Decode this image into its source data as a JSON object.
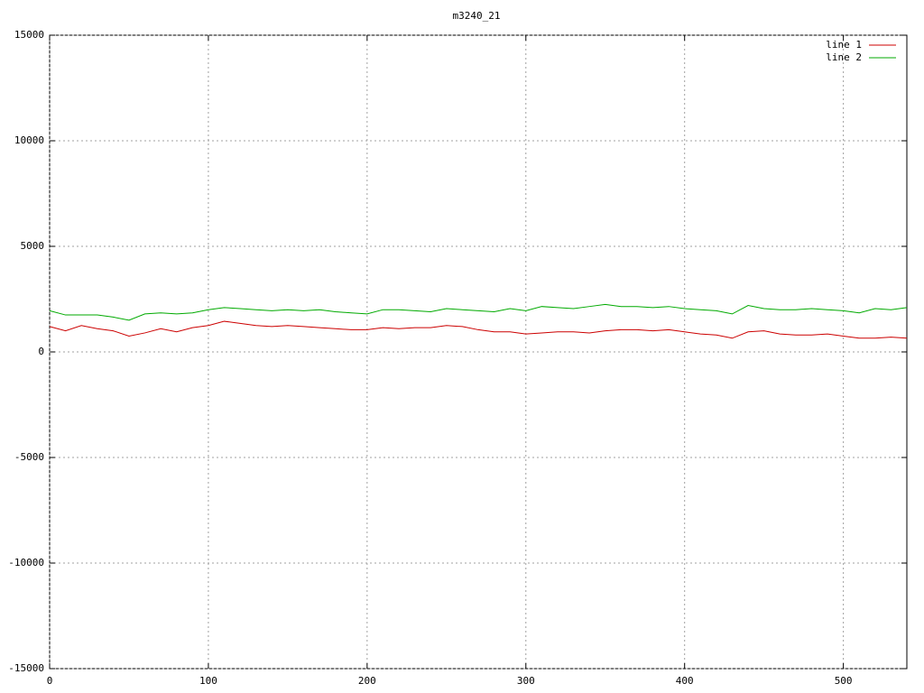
{
  "chart_data": {
    "type": "line",
    "title": "m3240_21",
    "x": [
      0,
      10,
      20,
      30,
      40,
      50,
      60,
      70,
      80,
      90,
      100,
      110,
      120,
      130,
      140,
      150,
      160,
      170,
      180,
      190,
      200,
      210,
      220,
      230,
      240,
      250,
      260,
      270,
      280,
      290,
      300,
      310,
      320,
      330,
      340,
      350,
      360,
      370,
      380,
      390,
      400,
      410,
      420,
      430,
      440,
      450,
      460,
      470,
      480,
      490,
      500,
      510,
      520,
      530,
      540
    ],
    "series": [
      {
        "name": "line 1",
        "color": "#cc0000",
        "values": [
          1200,
          1000,
          1250,
          1100,
          1000,
          750,
          900,
          1100,
          950,
          1150,
          1250,
          1450,
          1350,
          1250,
          1200,
          1250,
          1200,
          1150,
          1100,
          1050,
          1050,
          1150,
          1100,
          1150,
          1150,
          1250,
          1200,
          1050,
          950,
          950,
          850,
          900,
          950,
          950,
          900,
          1000,
          1050,
          1050,
          1000,
          1050,
          950,
          850,
          800,
          650,
          950,
          1000,
          850,
          800,
          800,
          850,
          750,
          650,
          650,
          700,
          650
        ]
      },
      {
        "name": "line 2",
        "color": "#00aa00",
        "values": [
          1950,
          1750,
          1750,
          1750,
          1650,
          1500,
          1800,
          1850,
          1800,
          1850,
          2000,
          2100,
          2050,
          2000,
          1950,
          2000,
          1950,
          2000,
          1900,
          1850,
          1800,
          2000,
          2000,
          1950,
          1900,
          2050,
          2000,
          1950,
          1900,
          2050,
          1950,
          2150,
          2100,
          2050,
          2150,
          2250,
          2150,
          2150,
          2100,
          2150,
          2050,
          2000,
          1950,
          1800,
          2200,
          2050,
          2000,
          2000,
          2050,
          2000,
          1950,
          1850,
          2050,
          2000,
          2100
        ]
      }
    ],
    "xlim": [
      0,
      540
    ],
    "xticks": [
      0,
      100,
      200,
      300,
      400,
      500
    ],
    "ylim": [
      -15000,
      15000
    ],
    "yticks": [
      -15000,
      -10000,
      -5000,
      0,
      5000,
      10000,
      15000
    ],
    "grid": true,
    "legend": "top-right"
  }
}
